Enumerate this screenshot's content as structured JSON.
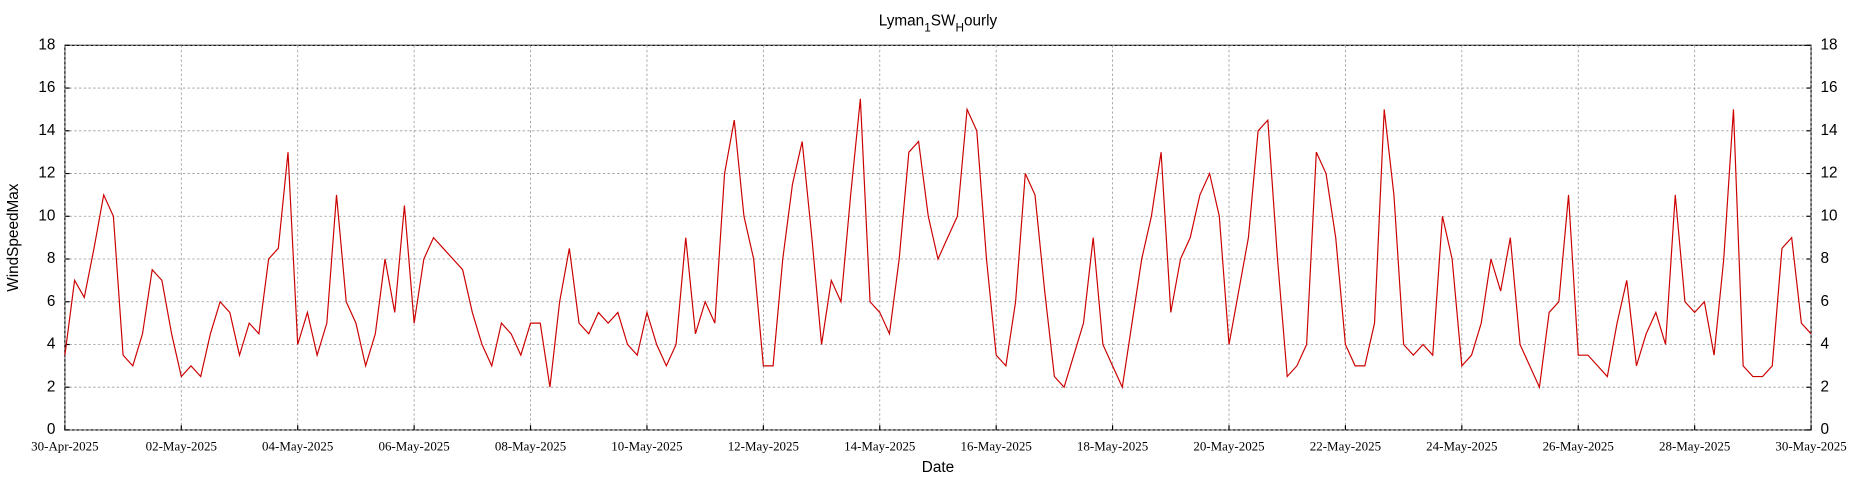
{
  "chart_data": {
    "type": "line",
    "title": [
      "Lyman",
      "1",
      "SW",
      "H",
      "ourly"
    ],
    "xlabel": "Date",
    "ylabel": "WindSpeedMax",
    "xlim": [
      "2025-04-30T00:00",
      "2025-05-30T00:00"
    ],
    "xticks": [
      {
        "value": "2025-04-30T00:00",
        "label": "30-Apr-2025"
      },
      {
        "value": "2025-05-02T00:00",
        "label": "02-May-2025"
      },
      {
        "value": "2025-05-04T00:00",
        "label": "04-May-2025"
      },
      {
        "value": "2025-05-06T00:00",
        "label": "06-May-2025"
      },
      {
        "value": "2025-05-08T00:00",
        "label": "08-May-2025"
      },
      {
        "value": "2025-05-10T00:00",
        "label": "10-May-2025"
      },
      {
        "value": "2025-05-12T00:00",
        "label": "12-May-2025"
      },
      {
        "value": "2025-05-14T00:00",
        "label": "14-May-2025"
      },
      {
        "value": "2025-05-16T00:00",
        "label": "16-May-2025"
      },
      {
        "value": "2025-05-18T00:00",
        "label": "18-May-2025"
      },
      {
        "value": "2025-05-20T00:00",
        "label": "20-May-2025"
      },
      {
        "value": "2025-05-22T00:00",
        "label": "22-May-2025"
      },
      {
        "value": "2025-05-24T00:00",
        "label": "24-May-2025"
      },
      {
        "value": "2025-05-26T00:00",
        "label": "26-May-2025"
      },
      {
        "value": "2025-05-28T00:00",
        "label": "28-May-2025"
      },
      {
        "value": "2025-05-30T00:00",
        "label": "30-May-2025"
      }
    ],
    "ylim": [
      0,
      18
    ],
    "yticks": [
      0,
      2,
      4,
      6,
      8,
      10,
      12,
      14,
      16,
      18
    ],
    "grid": true,
    "x": [
      "2025-04-30T00:00",
      "2025-04-30T04:00",
      "2025-04-30T08:00",
      "2025-04-30T12:00",
      "2025-04-30T16:00",
      "2025-04-30T20:00",
      "2025-05-01T00:00",
      "2025-05-01T04:00",
      "2025-05-01T08:00",
      "2025-05-01T12:00",
      "2025-05-01T16:00",
      "2025-05-01T20:00",
      "2025-05-02T00:00",
      "2025-05-02T04:00",
      "2025-05-02T08:00",
      "2025-05-02T12:00",
      "2025-05-02T16:00",
      "2025-05-02T20:00",
      "2025-05-03T00:00",
      "2025-05-03T04:00",
      "2025-05-03T08:00",
      "2025-05-03T12:00",
      "2025-05-03T16:00",
      "2025-05-03T20:00",
      "2025-05-04T00:00",
      "2025-05-04T04:00",
      "2025-05-04T08:00",
      "2025-05-04T12:00",
      "2025-05-04T16:00",
      "2025-05-04T20:00",
      "2025-05-05T00:00",
      "2025-05-05T04:00",
      "2025-05-05T08:00",
      "2025-05-05T12:00",
      "2025-05-05T16:00",
      "2025-05-05T20:00",
      "2025-05-06T00:00",
      "2025-05-06T04:00",
      "2025-05-06T08:00",
      "2025-05-06T12:00",
      "2025-05-06T16:00",
      "2025-05-06T20:00",
      "2025-05-07T00:00",
      "2025-05-07T04:00",
      "2025-05-07T08:00",
      "2025-05-07T12:00",
      "2025-05-07T16:00",
      "2025-05-07T20:00",
      "2025-05-08T00:00",
      "2025-05-08T04:00",
      "2025-05-08T08:00",
      "2025-05-08T12:00",
      "2025-05-08T16:00",
      "2025-05-08T20:00",
      "2025-05-09T00:00",
      "2025-05-09T04:00",
      "2025-05-09T08:00",
      "2025-05-09T12:00",
      "2025-05-09T16:00",
      "2025-05-09T20:00",
      "2025-05-10T00:00",
      "2025-05-10T04:00",
      "2025-05-10T08:00",
      "2025-05-10T12:00",
      "2025-05-10T16:00",
      "2025-05-10T20:00",
      "2025-05-11T00:00",
      "2025-05-11T04:00",
      "2025-05-11T08:00",
      "2025-05-11T12:00",
      "2025-05-11T16:00",
      "2025-05-11T20:00",
      "2025-05-12T00:00",
      "2025-05-12T04:00",
      "2025-05-12T08:00",
      "2025-05-12T12:00",
      "2025-05-12T16:00",
      "2025-05-12T20:00",
      "2025-05-13T00:00",
      "2025-05-13T04:00",
      "2025-05-13T08:00",
      "2025-05-13T12:00",
      "2025-05-13T16:00",
      "2025-05-13T20:00",
      "2025-05-14T00:00",
      "2025-05-14T04:00",
      "2025-05-14T08:00",
      "2025-05-14T12:00",
      "2025-05-14T16:00",
      "2025-05-14T20:00",
      "2025-05-15T00:00",
      "2025-05-15T04:00",
      "2025-05-15T08:00",
      "2025-05-15T12:00",
      "2025-05-15T16:00",
      "2025-05-15T20:00",
      "2025-05-16T00:00",
      "2025-05-16T04:00",
      "2025-05-16T08:00",
      "2025-05-16T12:00",
      "2025-05-16T16:00",
      "2025-05-16T20:00",
      "2025-05-17T00:00",
      "2025-05-17T04:00",
      "2025-05-17T08:00",
      "2025-05-17T12:00",
      "2025-05-17T16:00",
      "2025-05-17T20:00",
      "2025-05-18T00:00",
      "2025-05-18T04:00",
      "2025-05-18T08:00",
      "2025-05-18T12:00",
      "2025-05-18T16:00",
      "2025-05-18T20:00",
      "2025-05-19T00:00",
      "2025-05-19T04:00",
      "2025-05-19T08:00",
      "2025-05-19T12:00",
      "2025-05-19T16:00",
      "2025-05-19T20:00",
      "2025-05-20T00:00",
      "2025-05-20T04:00",
      "2025-05-20T08:00",
      "2025-05-20T12:00",
      "2025-05-20T16:00",
      "2025-05-20T20:00",
      "2025-05-21T00:00",
      "2025-05-21T04:00",
      "2025-05-21T08:00",
      "2025-05-21T12:00",
      "2025-05-21T16:00",
      "2025-05-21T20:00",
      "2025-05-22T00:00",
      "2025-05-22T04:00",
      "2025-05-22T08:00",
      "2025-05-22T12:00",
      "2025-05-22T16:00",
      "2025-05-22T20:00",
      "2025-05-23T00:00",
      "2025-05-23T04:00",
      "2025-05-23T08:00",
      "2025-05-23T12:00",
      "2025-05-23T16:00",
      "2025-05-23T20:00",
      "2025-05-24T00:00",
      "2025-05-24T04:00",
      "2025-05-24T08:00",
      "2025-05-24T12:00",
      "2025-05-24T16:00",
      "2025-05-24T20:00",
      "2025-05-25T00:00",
      "2025-05-25T04:00",
      "2025-05-25T08:00",
      "2025-05-25T12:00",
      "2025-05-25T16:00",
      "2025-05-25T20:00",
      "2025-05-26T00:00",
      "2025-05-26T04:00",
      "2025-05-26T08:00",
      "2025-05-26T12:00",
      "2025-05-26T16:00",
      "2025-05-26T20:00",
      "2025-05-27T00:00",
      "2025-05-27T04:00",
      "2025-05-27T08:00",
      "2025-05-27T12:00",
      "2025-05-27T16:00",
      "2025-05-27T20:00",
      "2025-05-28T00:00",
      "2025-05-28T04:00",
      "2025-05-28T08:00",
      "2025-05-28T12:00",
      "2025-05-28T16:00",
      "2025-05-28T20:00",
      "2025-05-29T00:00",
      "2025-05-29T04:00",
      "2025-05-29T08:00",
      "2025-05-29T12:00",
      "2025-05-29T16:00",
      "2025-05-29T20:00",
      "2025-05-30T00:00"
    ],
    "series": [
      {
        "color": "#cc0000",
        "values": [
          3.5,
          7,
          6.2,
          8.5,
          11,
          10,
          3.5,
          3,
          4.5,
          7.5,
          7,
          4.5,
          2.5,
          3,
          2.5,
          4.5,
          6,
          5.5,
          3.5,
          5,
          4.5,
          8,
          8.5,
          13,
          4,
          5.5,
          3.5,
          5,
          11,
          6,
          5,
          3,
          4.5,
          8,
          5.5,
          10.5,
          5,
          8,
          9,
          8.5,
          8,
          7.5,
          5.5,
          4,
          3,
          5,
          4.5,
          3.5,
          5,
          5,
          2,
          6,
          8.5,
          5,
          4.5,
          5.5,
          5,
          5.5,
          4,
          3.5,
          5.5,
          4,
          3,
          4,
          9,
          4.5,
          6,
          5,
          12,
          14.5,
          10,
          8,
          3,
          3,
          8,
          11.5,
          13.5,
          9,
          4,
          7,
          6,
          11,
          15.5,
          6,
          5.5,
          4.5,
          8,
          13,
          13.5,
          10,
          8,
          9,
          10,
          15,
          14,
          8,
          3.5,
          3,
          6,
          12,
          11,
          6.5,
          2.5,
          2,
          3.5,
          5,
          9,
          4,
          3,
          2,
          5,
          8,
          10,
          13,
          5.5,
          8,
          9,
          11,
          12,
          10,
          4,
          6.5,
          9,
          14,
          14.5,
          8,
          2.5,
          3,
          4,
          13,
          12,
          9,
          4,
          3,
          3,
          5,
          15,
          11,
          4,
          3.5,
          4,
          3.5,
          10,
          8,
          3,
          3.5,
          5,
          8,
          6.5,
          9,
          4,
          3,
          2,
          5.5,
          6,
          11,
          3.5,
          3.5,
          3,
          2.5,
          5,
          7,
          3,
          4.5,
          5.5,
          4,
          11,
          6,
          5.5,
          6,
          3.5,
          8,
          15,
          3,
          2.5,
          2.5,
          3,
          8.5,
          9,
          5,
          4.5
        ]
      }
    ]
  }
}
